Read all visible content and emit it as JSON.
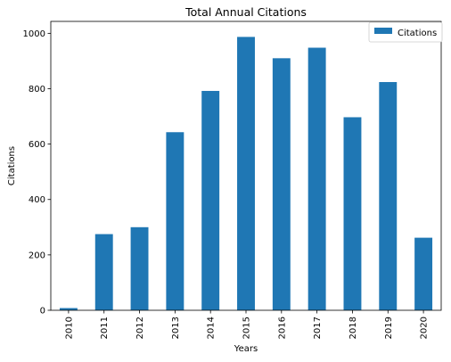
{
  "chart_data": {
    "type": "bar",
    "title": "Total Annual Citations",
    "xlabel": "Years",
    "ylabel": "Citations",
    "categories": [
      "2010",
      "2011",
      "2012",
      "2013",
      "2014",
      "2015",
      "2016",
      "2017",
      "2018",
      "2019",
      "2020"
    ],
    "series": [
      {
        "name": "Citations",
        "color": "#1f77b4",
        "values": [
          8,
          275,
          300,
          643,
          792,
          987,
          910,
          948,
          697,
          824,
          262
        ]
      }
    ],
    "ylim": [
      0,
      1043
    ],
    "yticks": [
      0,
      200,
      400,
      600,
      800,
      1000
    ],
    "grid": false,
    "legend": {
      "position": "top-right"
    }
  }
}
